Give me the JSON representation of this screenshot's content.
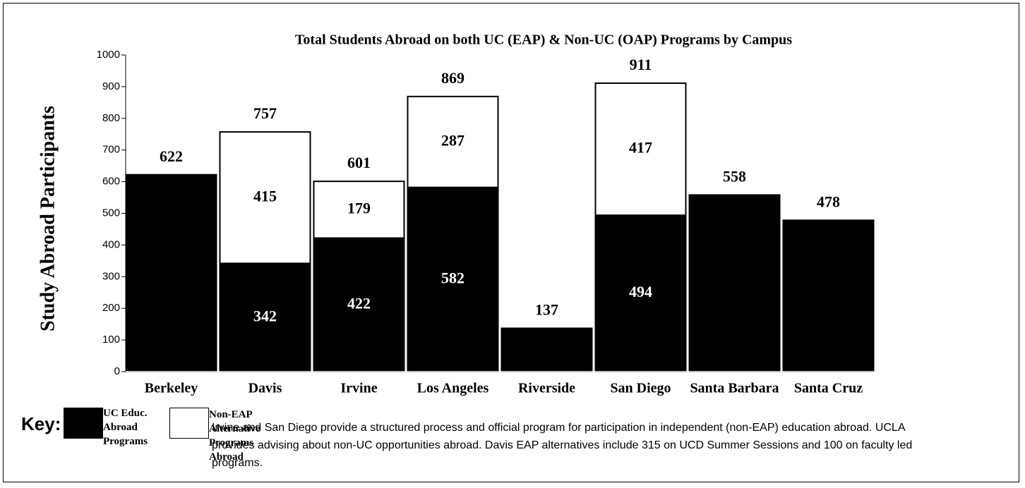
{
  "chart_data": {
    "type": "stacked_bar",
    "title": "Total Students Abroad on both UC (EAP) & Non-UC (OAP) Programs by Campus",
    "y_label": "Study Abroad Participants",
    "categories": [
      "Berkeley",
      "Davis",
      "Irvine",
      "Los Angeles",
      "Riverside",
      "San Diego",
      "Santa Barbara",
      "Santa Cruz"
    ],
    "series": [
      {
        "name": "UC Educ. Abroad Programs",
        "color": "#000000",
        "values": [
          622,
          342,
          422,
          582,
          137,
          494,
          558,
          478
        ]
      },
      {
        "name": "Non-EAP Alternative Programs Abroad",
        "color": "#ffffff",
        "values": [
          null,
          415,
          179,
          287,
          null,
          417,
          null,
          null
        ]
      }
    ],
    "totals": [
      622,
      757,
      601,
      869,
      137,
      911,
      558,
      478
    ],
    "ylim": [
      0,
      1000
    ],
    "yticks": [
      0,
      100,
      200,
      300,
      400,
      500,
      600,
      700,
      800,
      900,
      1000
    ],
    "legend_title": "Key:",
    "note": "Irvine and San Diego provide a structured process and official program for participation in independent (non-EAP) education abroad. UCLA provides advising about non-UC opportunities abroad.  Davis EAP alternatives include 315 on UCD Summer Sessions and 100 on faculty led programs."
  }
}
